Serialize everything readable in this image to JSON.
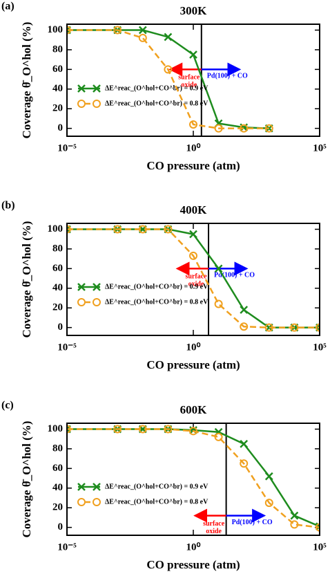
{
  "chart_data": [
    {
      "type": "line",
      "panel_label": "(a)",
      "title": "300K",
      "xlabel": "CO pressure (atm)",
      "ylabel": "Coverage θ̄_O^hol (%)",
      "x": [
        1e-05,
        0.001,
        0.01,
        0.1,
        1,
        10,
        100,
        1000
      ],
      "series": [
        {
          "name": "ΔE^reac_(O^hol+CO^br) = 0.9 eV",
          "color": "#1e8c1e",
          "marker": "x",
          "dash": false,
          "values": [
            100,
            100,
            100,
            93,
            75,
            5,
            1,
            0
          ]
        },
        {
          "name": "ΔE^reac_(O^hol+CO^br) = 0.8 eV",
          "color": "#f0a01e",
          "marker": "o",
          "dash": true,
          "values": [
            100,
            100,
            92,
            60,
            4,
            0,
            0,
            0
          ]
        }
      ],
      "xlim": [
        1e-05,
        100000
      ],
      "log_x": true,
      "xticks": [
        {
          "value": 1e-05,
          "label": "10⁻⁵"
        },
        {
          "value": 1,
          "label": "10⁰"
        },
        {
          "value": 100000,
          "label": "10⁵"
        }
      ],
      "ylim": [
        -8,
        106
      ],
      "yticks": [
        0,
        20,
        40,
        60,
        80,
        100
      ],
      "divider": {
        "x": 2.1,
        "arrow_y": 60,
        "left_label": [
          "surface",
          "oxide"
        ],
        "right_label": "Pd(100) + CO",
        "left_color": "#ff0000",
        "right_color": "#0000ff"
      }
    },
    {
      "type": "line",
      "panel_label": "(b)",
      "title": "400K",
      "xlabel": "CO pressure (atm)",
      "ylabel": "Coverage θ̄_O^hol (%)",
      "x": [
        1e-05,
        0.001,
        0.01,
        0.1,
        1,
        10,
        100,
        1000,
        10000,
        100000
      ],
      "series": [
        {
          "name": "ΔE^reac_(O^hol+CO^br) = 0.9 eV",
          "color": "#1e8c1e",
          "marker": "x",
          "dash": false,
          "values": [
            100,
            100,
            100,
            100,
            95,
            60,
            18,
            0,
            0,
            0
          ]
        },
        {
          "name": "ΔE^reac_(O^hol+CO^br) = 0.8 eV",
          "color": "#f0a01e",
          "marker": "o",
          "dash": true,
          "values": [
            100,
            100,
            100,
            100,
            73,
            24,
            1,
            0,
            0,
            0
          ]
        }
      ],
      "xlim": [
        1e-05,
        100000
      ],
      "log_x": true,
      "xticks": [
        {
          "value": 1e-05,
          "label": "10⁻⁵"
        },
        {
          "value": 1,
          "label": "10⁰"
        },
        {
          "value": 100000,
          "label": "10⁵"
        }
      ],
      "ylim": [
        -8,
        106
      ],
      "yticks": [
        0,
        20,
        40,
        60,
        80,
        100
      ],
      "divider": {
        "x": 4,
        "arrow_y": 60,
        "left_label": [
          "surface",
          "oxide"
        ],
        "right_label": "Pd(100) + CO",
        "left_color": "#ff0000",
        "right_color": "#0000ff"
      }
    },
    {
      "type": "line",
      "panel_label": "(c)",
      "title": "600K",
      "xlabel": "CO pressure (atm)",
      "ylabel": "Coverage θ̄_O^hol (%)",
      "x": [
        1e-05,
        0.001,
        0.01,
        0.1,
        1,
        10,
        100,
        1000,
        10000,
        100000
      ],
      "series": [
        {
          "name": "ΔE^reac_(O^hol+CO^br) = 0.9 eV",
          "color": "#1e8c1e",
          "marker": "x",
          "dash": false,
          "values": [
            100,
            100,
            100,
            100,
            99,
            97,
            85,
            52,
            12,
            1
          ]
        },
        {
          "name": "ΔE^reac_(O^hol+CO^br) = 0.8 eV",
          "color": "#f0a01e",
          "marker": "o",
          "dash": true,
          "values": [
            100,
            100,
            100,
            100,
            98,
            92,
            65,
            25,
            3,
            0
          ]
        }
      ],
      "xlim": [
        1e-05,
        100000
      ],
      "log_x": true,
      "xticks": [
        {
          "value": 1e-05,
          "label": "10⁻⁵"
        },
        {
          "value": 1,
          "label": "10⁰"
        },
        {
          "value": 100000,
          "label": "10⁵"
        }
      ],
      "ylim": [
        -8,
        106
      ],
      "yticks": [
        0,
        20,
        40,
        60,
        80,
        100
      ],
      "divider": {
        "x": 20,
        "arrow_y": 12,
        "left_label": [
          "surface",
          "oxide"
        ],
        "right_label": "Pd(100) + CO",
        "left_color": "#ff0000",
        "right_color": "#0000ff"
      }
    }
  ]
}
